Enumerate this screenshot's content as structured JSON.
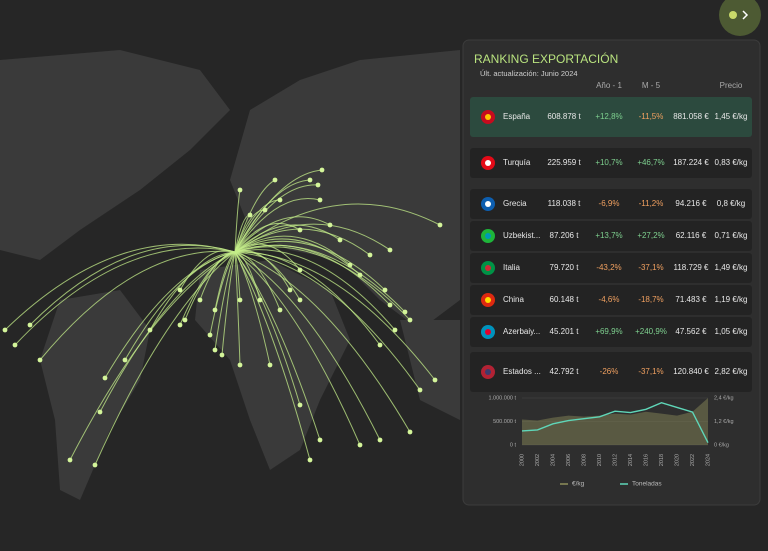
{
  "panel": {
    "title": "RANKING EXPORTACIÓN",
    "updated": "Últ. actualización: Junio 2024",
    "columns": [
      "Año - 1",
      "M - 5",
      "Precio"
    ],
    "rows": [
      [
        "España",
        "608.878 t",
        "+12,8%",
        "-11,5%",
        "881.058 €",
        "1,45 €/kg"
      ],
      [
        "Turquía",
        "225.959 t",
        "+10,7%",
        "+46,7%",
        "187.224 €",
        "0,83 €/kg"
      ],
      [
        "Grecia",
        "118.038 t",
        "-6,9%",
        "-11,2%",
        "94.216 €",
        "0,8 €/kg"
      ],
      [
        "Uzbekist...",
        "87.206 t",
        "+13,7%",
        "+27,2%",
        "62.116 €",
        "0,71 €/kg"
      ],
      [
        "Italia",
        "79.720 t",
        "-43,2%",
        "-37,1%",
        "118.729 €",
        "1,49 €/kg"
      ],
      [
        "China",
        "60.148 t",
        "-4,6%",
        "-18,7%",
        "71.483 €",
        "1,19 €/kg"
      ],
      [
        "Azerbaiy...",
        "45.201 t",
        "+69,9%",
        "+240,9%",
        "47.562 €",
        "1,05 €/kg"
      ],
      [
        "Estados ...",
        "42.792 t",
        "-26%",
        "-37,1%",
        "120.840 €",
        "2,82 €/kg"
      ]
    ]
  },
  "chart_data": {
    "type": "line",
    "categories": [
      "2000",
      "2002",
      "2004",
      "2006",
      "2008",
      "2010",
      "2012",
      "2014",
      "2016",
      "2018",
      "2020",
      "2022",
      "2024"
    ],
    "ylim": [
      0,
      1000000
    ],
    "yticks": [
      {
        "value": 1000000,
        "label": "1.000.000 t"
      },
      {
        "value": 500000,
        "label": "500.000 t"
      },
      {
        "value": 0,
        "label": "0 t"
      }
    ],
    "y2lim": [
      0,
      2.4
    ],
    "y2ticks": [
      {
        "value": 2.4,
        "label": "2,4 €/kg"
      },
      {
        "value": 1.2,
        "label": "1,2 €/kg"
      },
      {
        "value": 0,
        "label": "0 €/kg"
      }
    ],
    "series": [
      {
        "name": "€/kg",
        "color": "#8f8f5a",
        "axis": "y2",
        "values": [
          1.3,
          1.25,
          1.4,
          1.5,
          1.45,
          1.5,
          1.6,
          1.55,
          1.7,
          1.6,
          1.5,
          1.7,
          2.4
        ]
      },
      {
        "name": "Toneladas",
        "color": "#5fd6b8",
        "values": [
          300000,
          320000,
          450000,
          520000,
          560000,
          600000,
          720000,
          690000,
          760000,
          900000,
          800000,
          700000,
          50000
        ]
      }
    ]
  }
}
